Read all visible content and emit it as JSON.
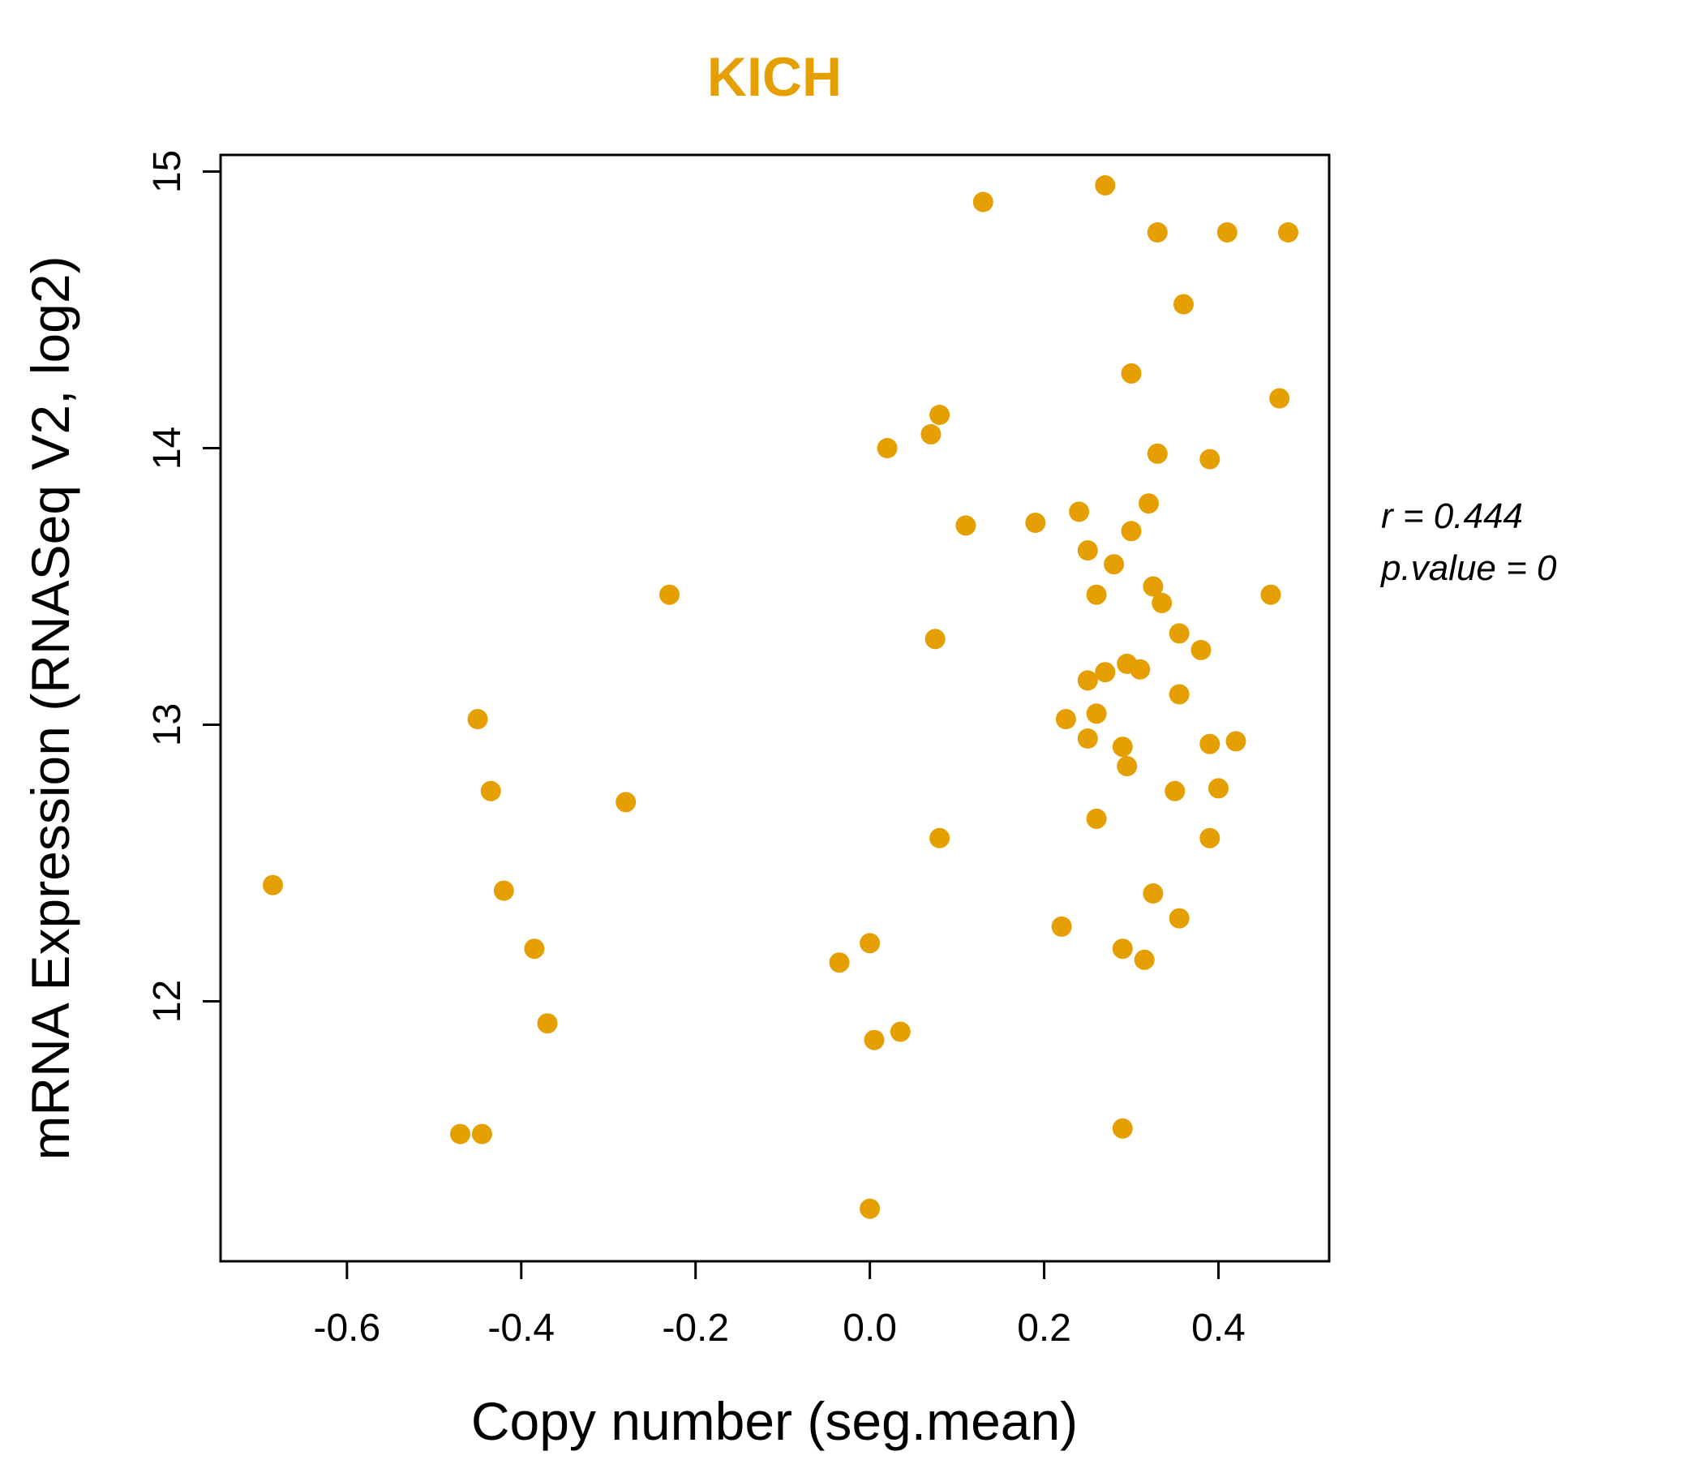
{
  "chart_data": {
    "type": "scatter",
    "title": "KICH",
    "title_color": "#E69F00",
    "point_color": "#E69F00",
    "point_radius": 12.5,
    "xlabel": "Copy number (seg.mean)",
    "ylabel": "mRNA Expression (RNASeq V2, log2)",
    "xlim": [
      -0.745,
      0.527
    ],
    "ylim": [
      11.06,
      15.06
    ],
    "x_ticks": [
      -0.6,
      -0.4,
      -0.2,
      0.0,
      0.2,
      0.4
    ],
    "x_tick_labels": [
      "-0.6",
      "-0.4",
      "-0.2",
      "0.0",
      "0.2",
      "0.4"
    ],
    "y_ticks": [
      12,
      13,
      14,
      15
    ],
    "y_tick_labels": [
      "12",
      "13",
      "14",
      "15"
    ],
    "grid": false,
    "stats": {
      "r": 0.444,
      "p_value": 0
    },
    "annotation": {
      "line1": "r = 0.444",
      "line2": "p.value = 0"
    },
    "points": [
      [
        0.13,
        14.89
      ],
      [
        0.27,
        14.95
      ],
      [
        0.33,
        14.78
      ],
      [
        0.41,
        14.78
      ],
      [
        0.48,
        14.78
      ],
      [
        0.36,
        14.52
      ],
      [
        0.3,
        14.27
      ],
      [
        0.47,
        14.18
      ],
      [
        0.08,
        14.12
      ],
      [
        0.07,
        14.05
      ],
      [
        0.02,
        14.0
      ],
      [
        0.33,
        13.98
      ],
      [
        0.39,
        13.96
      ],
      [
        0.32,
        13.8
      ],
      [
        0.24,
        13.77
      ],
      [
        0.11,
        13.72
      ],
      [
        0.19,
        13.73
      ],
      [
        0.3,
        13.7
      ],
      [
        0.25,
        13.63
      ],
      [
        0.28,
        13.58
      ],
      [
        0.325,
        13.5
      ],
      [
        0.26,
        13.47
      ],
      [
        0.46,
        13.47
      ],
      [
        -0.23,
        13.47
      ],
      [
        0.335,
        13.44
      ],
      [
        0.355,
        13.33
      ],
      [
        0.075,
        13.31
      ],
      [
        0.38,
        13.27
      ],
      [
        0.295,
        13.22
      ],
      [
        0.31,
        13.2
      ],
      [
        0.27,
        13.19
      ],
      [
        0.25,
        13.16
      ],
      [
        0.355,
        13.11
      ],
      [
        0.225,
        13.02
      ],
      [
        0.26,
        13.04
      ],
      [
        -0.45,
        13.02
      ],
      [
        0.25,
        12.95
      ],
      [
        0.39,
        12.93
      ],
      [
        0.42,
        12.94
      ],
      [
        0.29,
        12.92
      ],
      [
        0.295,
        12.85
      ],
      [
        -0.435,
        12.76
      ],
      [
        -0.28,
        12.72
      ],
      [
        0.35,
        12.76
      ],
      [
        0.4,
        12.77
      ],
      [
        0.26,
        12.66
      ],
      [
        0.39,
        12.59
      ],
      [
        0.08,
        12.59
      ],
      [
        -0.685,
        12.42
      ],
      [
        -0.42,
        12.4
      ],
      [
        0.325,
        12.39
      ],
      [
        0.355,
        12.3
      ],
      [
        0.22,
        12.27
      ],
      [
        -0.385,
        12.19
      ],
      [
        0.0,
        12.21
      ],
      [
        -0.035,
        12.14
      ],
      [
        0.29,
        12.19
      ],
      [
        0.315,
        12.15
      ],
      [
        -0.37,
        11.92
      ],
      [
        0.035,
        11.89
      ],
      [
        0.005,
        11.86
      ],
      [
        -0.47,
        11.52
      ],
      [
        -0.445,
        11.52
      ],
      [
        0.29,
        11.54
      ],
      [
        0.0,
        11.25
      ]
    ]
  }
}
